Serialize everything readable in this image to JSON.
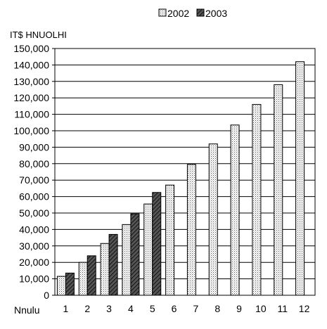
{
  "chart_data": {
    "type": "bar",
    "ylabel": "IT$ HNUOLHI",
    "xlabel": "Nnulu",
    "categories": [
      "1",
      "2",
      "3",
      "4",
      "5",
      "6",
      "7",
      "8",
      "9",
      "10",
      "11",
      "12"
    ],
    "series": [
      {
        "name": "2002",
        "values": [
          11500,
          20000,
          31500,
          43000,
          55500,
          67000,
          79500,
          92000,
          103500,
          116000,
          128000,
          142000
        ]
      },
      {
        "name": "2003",
        "values": [
          13500,
          24000,
          37000,
          49500,
          62500,
          null,
          null,
          null,
          null,
          null,
          null,
          null
        ]
      }
    ],
    "ylim": [
      0,
      150000
    ],
    "yticks": [
      "0",
      "10,000",
      "20,000",
      "30,000",
      "40,000",
      "50,000",
      "60,000",
      "70,000",
      "80,000",
      "90,000",
      "100,000",
      "110,000",
      "120,000",
      "130,000",
      "140,000",
      "150,000"
    ],
    "grid": true,
    "legend": "top-right",
    "colors": {
      "2002": "#d9d9d9",
      "2003": "#3a3a3a",
      "grid": "#000000"
    }
  }
}
